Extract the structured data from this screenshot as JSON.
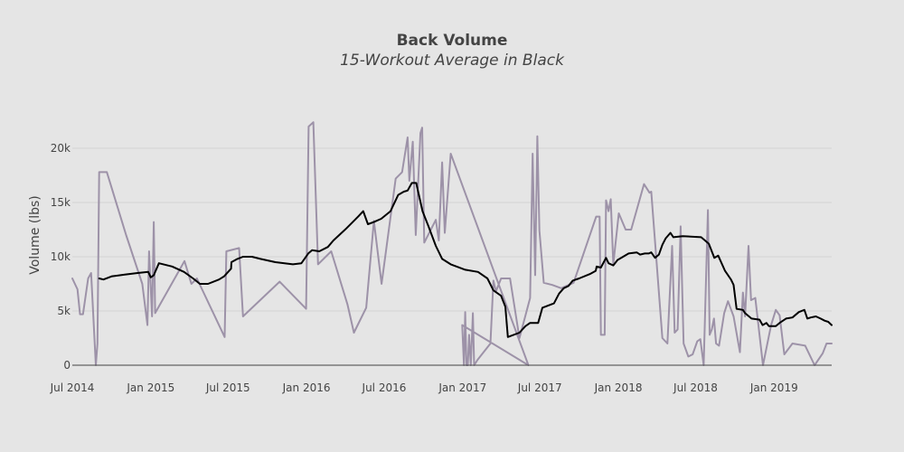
{
  "chart_data": {
    "type": "line",
    "title": "Back Volume",
    "subtitle": "15-Workout Average in Black",
    "xlabel": "",
    "ylabel": "Volume (lbs)",
    "x_ticks": [
      "Jul 2014",
      "Jan 2015",
      "Jul 2015",
      "Jan 2016",
      "Jul 2016",
      "Jan 2017",
      "Jul 2017",
      "Jan 2018",
      "Jul 2018",
      "Jan 2019"
    ],
    "y_ticks": [
      "0",
      "5k",
      "10k",
      "15k",
      "20k"
    ],
    "xlim": [
      "2014-07-01",
      "2019-05-16"
    ],
    "ylim": [
      0,
      24500
    ],
    "grid": true,
    "colors": {
      "raw": "#9d92a8",
      "average": "#000000",
      "background": "#e5e5e5",
      "grid": "#d2d2d2"
    },
    "series": [
      {
        "key": "raw",
        "points": [
          [
            "2014-07-01",
            8000
          ],
          [
            "2014-07-13",
            7000
          ],
          [
            "2014-07-19",
            4700
          ],
          [
            "2014-07-26",
            4700
          ],
          [
            "2014-08-07",
            8000
          ],
          [
            "2014-08-14",
            8500
          ],
          [
            "2014-08-25",
            0
          ],
          [
            "2014-08-29",
            2000
          ],
          [
            "2014-09-02",
            17800
          ],
          [
            "2014-09-20",
            17800
          ],
          [
            "2014-11-04",
            12000
          ],
          [
            "2014-12-12",
            7500
          ],
          [
            "2014-12-24",
            3700
          ],
          [
            "2014-12-28",
            10500
          ],
          [
            "2015-01-04",
            4500
          ],
          [
            "2015-01-08",
            13200
          ],
          [
            "2015-01-11",
            4800
          ],
          [
            "2015-03-21",
            9600
          ],
          [
            "2015-04-06",
            7500
          ],
          [
            "2015-04-19",
            8000
          ],
          [
            "2015-06-23",
            2600
          ],
          [
            "2015-06-27",
            10500
          ],
          [
            "2015-07-27",
            10800
          ],
          [
            "2015-08-05",
            4500
          ],
          [
            "2015-10-30",
            7700
          ],
          [
            "2015-12-31",
            5200
          ],
          [
            "2016-01-06",
            22000
          ],
          [
            "2016-01-17",
            22400
          ],
          [
            "2016-01-28",
            9300
          ],
          [
            "2016-02-28",
            10500
          ],
          [
            "2016-04-06",
            5600
          ],
          [
            "2016-04-21",
            3000
          ],
          [
            "2016-05-20",
            5300
          ],
          [
            "2016-06-07",
            13300
          ],
          [
            "2016-06-25",
            7500
          ],
          [
            "2016-07-28",
            17200
          ],
          [
            "2016-08-12",
            17800
          ],
          [
            "2016-08-25",
            21000
          ],
          [
            "2016-08-29",
            17000
          ],
          [
            "2016-09-06",
            20600
          ],
          [
            "2016-09-13",
            12000
          ],
          [
            "2016-09-24",
            21400
          ],
          [
            "2016-09-28",
            21900
          ],
          [
            "2016-10-03",
            11300
          ],
          [
            "2016-10-30",
            13400
          ],
          [
            "2016-11-06",
            11500
          ],
          [
            "2016-11-14",
            18700
          ],
          [
            "2016-11-20",
            12200
          ],
          [
            "2016-12-04",
            19500
          ],
          [
            "2017-06-04",
            0
          ],
          [
            "2016-12-31",
            3700
          ],
          [
            "2017-01-04",
            0
          ],
          [
            "2017-01-07",
            4900
          ],
          [
            "2017-01-10",
            0
          ],
          [
            "2017-01-13",
            0
          ],
          [
            "2017-01-16",
            2800
          ],
          [
            "2017-01-20",
            0
          ],
          [
            "2017-01-25",
            4800
          ],
          [
            "2017-01-28",
            0
          ],
          [
            "2017-02-05",
            500
          ],
          [
            "2017-03-07",
            2000
          ],
          [
            "2017-03-14",
            7800
          ],
          [
            "2017-03-20",
            6800
          ],
          [
            "2017-04-01",
            8000
          ],
          [
            "2017-04-22",
            8000
          ],
          [
            "2017-05-14",
            2500
          ],
          [
            "2017-06-08",
            6200
          ],
          [
            "2017-06-14",
            19500
          ],
          [
            "2017-06-20",
            8300
          ],
          [
            "2017-06-25",
            21100
          ],
          [
            "2017-06-30",
            12400
          ],
          [
            "2017-07-10",
            7600
          ],
          [
            "2017-07-30",
            7400
          ],
          [
            "2017-08-20",
            7100
          ],
          [
            "2017-09-18",
            7600
          ],
          [
            "2017-11-10",
            13700
          ],
          [
            "2017-11-18",
            13700
          ],
          [
            "2017-11-21",
            2800
          ],
          [
            "2017-11-30",
            2800
          ],
          [
            "2017-12-03",
            15200
          ],
          [
            "2017-12-09",
            14200
          ],
          [
            "2017-12-14",
            15300
          ],
          [
            "2017-12-20",
            9300
          ],
          [
            "2018-01-02",
            14000
          ],
          [
            "2018-01-18",
            12500
          ],
          [
            "2018-01-31",
            12500
          ],
          [
            "2018-03-02",
            16700
          ],
          [
            "2018-03-15",
            15900
          ],
          [
            "2018-03-19",
            16000
          ],
          [
            "2018-04-14",
            2500
          ],
          [
            "2018-04-26",
            2000
          ],
          [
            "2018-05-07",
            11000
          ],
          [
            "2018-05-13",
            3000
          ],
          [
            "2018-05-20",
            3300
          ],
          [
            "2018-05-27",
            12800
          ],
          [
            "2018-06-03",
            2000
          ],
          [
            "2018-06-14",
            800
          ],
          [
            "2018-06-24",
            1000
          ],
          [
            "2018-07-05",
            2200
          ],
          [
            "2018-07-12",
            2400
          ],
          [
            "2018-07-20",
            0
          ],
          [
            "2018-07-30",
            14300
          ],
          [
            "2018-08-03",
            2800
          ],
          [
            "2018-08-08",
            3300
          ],
          [
            "2018-08-13",
            4300
          ],
          [
            "2018-08-18",
            2000
          ],
          [
            "2018-08-25",
            1800
          ],
          [
            "2018-09-06",
            4800
          ],
          [
            "2018-09-15",
            5900
          ],
          [
            "2018-09-28",
            4500
          ],
          [
            "2018-10-13",
            1200
          ],
          [
            "2018-10-20",
            6700
          ],
          [
            "2018-10-25",
            4500
          ],
          [
            "2018-11-02",
            11000
          ],
          [
            "2018-11-08",
            6000
          ],
          [
            "2018-11-18",
            6200
          ],
          [
            "2018-12-06",
            0
          ],
          [
            "2018-12-25",
            3700
          ],
          [
            "2019-01-05",
            5100
          ],
          [
            "2019-01-14",
            4600
          ],
          [
            "2019-01-25",
            1000
          ],
          [
            "2019-02-13",
            2000
          ],
          [
            "2019-03-15",
            1800
          ],
          [
            "2019-04-06",
            0
          ],
          [
            "2019-04-25",
            1100
          ],
          [
            "2019-05-04",
            2000
          ],
          [
            "2019-05-16",
            2000
          ]
        ]
      },
      {
        "key": "average",
        "points": [
          [
            "2014-09-02",
            8000
          ],
          [
            "2014-09-12",
            7900
          ],
          [
            "2014-10-02",
            8200
          ],
          [
            "2014-11-01",
            8350
          ],
          [
            "2014-12-01",
            8500
          ],
          [
            "2014-12-26",
            8600
          ],
          [
            "2015-01-01",
            8100
          ],
          [
            "2015-01-08",
            8300
          ],
          [
            "2015-01-20",
            9400
          ],
          [
            "2015-02-20",
            9100
          ],
          [
            "2015-03-20",
            8600
          ],
          [
            "2015-04-10",
            8000
          ],
          [
            "2015-04-26",
            7500
          ],
          [
            "2015-05-15",
            7500
          ],
          [
            "2015-06-10",
            7900
          ],
          [
            "2015-06-22",
            8200
          ],
          [
            "2015-07-08",
            8900
          ],
          [
            "2015-07-09",
            9500
          ],
          [
            "2015-07-23",
            9800
          ],
          [
            "2015-08-05",
            10000
          ],
          [
            "2015-08-26",
            10000
          ],
          [
            "2015-09-15",
            9800
          ],
          [
            "2015-10-20",
            9500
          ],
          [
            "2015-11-30",
            9300
          ],
          [
            "2015-12-20",
            9400
          ],
          [
            "2016-01-05",
            10300
          ],
          [
            "2016-01-14",
            10600
          ],
          [
            "2016-01-31",
            10500
          ],
          [
            "2016-02-20",
            10900
          ],
          [
            "2016-03-04",
            11500
          ],
          [
            "2016-04-03",
            12600
          ],
          [
            "2016-05-01",
            13700
          ],
          [
            "2016-05-13",
            14200
          ],
          [
            "2016-05-24",
            13000
          ],
          [
            "2016-06-07",
            13200
          ],
          [
            "2016-06-24",
            13500
          ],
          [
            "2016-07-16",
            14200
          ],
          [
            "2016-08-03",
            15700
          ],
          [
            "2016-08-16",
            16000
          ],
          [
            "2016-08-25",
            16100
          ],
          [
            "2016-09-04",
            16800
          ],
          [
            "2016-09-14",
            16800
          ],
          [
            "2016-09-29",
            14200
          ],
          [
            "2016-10-13",
            12800
          ],
          [
            "2016-10-30",
            11000
          ],
          [
            "2016-11-14",
            9800
          ],
          [
            "2016-12-04",
            9300
          ],
          [
            "2017-01-07",
            8800
          ],
          [
            "2017-02-06",
            8600
          ],
          [
            "2017-02-28",
            8000
          ],
          [
            "2017-03-14",
            6900
          ],
          [
            "2017-04-01",
            6400
          ],
          [
            "2017-04-11",
            5400
          ],
          [
            "2017-04-17",
            2600
          ],
          [
            "2017-05-14",
            3000
          ],
          [
            "2017-05-28",
            3600
          ],
          [
            "2017-06-08",
            3900
          ],
          [
            "2017-06-27",
            3900
          ],
          [
            "2017-07-07",
            5300
          ],
          [
            "2017-08-03",
            5700
          ],
          [
            "2017-08-15",
            6600
          ],
          [
            "2017-08-26",
            7100
          ],
          [
            "2017-09-06",
            7300
          ],
          [
            "2017-09-16",
            7800
          ],
          [
            "2017-10-01",
            8000
          ],
          [
            "2017-10-26",
            8400
          ],
          [
            "2017-11-09",
            8700
          ],
          [
            "2017-11-11",
            9100
          ],
          [
            "2017-11-21",
            9000
          ],
          [
            "2017-12-03",
            9900
          ],
          [
            "2017-12-09",
            9400
          ],
          [
            "2017-12-20",
            9200
          ],
          [
            "2017-12-30",
            9700
          ],
          [
            "2018-01-25",
            10300
          ],
          [
            "2018-02-13",
            10400
          ],
          [
            "2018-02-21",
            10200
          ],
          [
            "2018-03-04",
            10300
          ],
          [
            "2018-03-13",
            10300
          ],
          [
            "2018-03-19",
            10400
          ],
          [
            "2018-03-28",
            9900
          ],
          [
            "2018-04-06",
            10200
          ],
          [
            "2018-04-14",
            11100
          ],
          [
            "2018-04-22",
            11700
          ],
          [
            "2018-05-03",
            12200
          ],
          [
            "2018-05-10",
            11800
          ],
          [
            "2018-06-01",
            11900
          ],
          [
            "2018-07-14",
            11800
          ],
          [
            "2018-08-01",
            11200
          ],
          [
            "2018-08-14",
            9900
          ],
          [
            "2018-08-23",
            10100
          ],
          [
            "2018-09-08",
            8700
          ],
          [
            "2018-09-22",
            7900
          ],
          [
            "2018-09-28",
            7400
          ],
          [
            "2018-10-05",
            5200
          ],
          [
            "2018-10-20",
            5100
          ],
          [
            "2018-10-25",
            4800
          ],
          [
            "2018-11-09",
            4300
          ],
          [
            "2018-11-28",
            4200
          ],
          [
            "2018-12-05",
            3700
          ],
          [
            "2018-12-14",
            3900
          ],
          [
            "2018-12-20",
            3600
          ],
          [
            "2019-01-05",
            3600
          ],
          [
            "2019-01-14",
            3900
          ],
          [
            "2019-01-29",
            4300
          ],
          [
            "2019-02-13",
            4400
          ],
          [
            "2019-02-28",
            4900
          ],
          [
            "2019-03-13",
            5100
          ],
          [
            "2019-03-20",
            4300
          ],
          [
            "2019-03-28",
            4400
          ],
          [
            "2019-04-09",
            4500
          ],
          [
            "2019-04-20",
            4300
          ],
          [
            "2019-04-30",
            4100
          ],
          [
            "2019-05-08",
            4000
          ],
          [
            "2019-05-16",
            3700
          ]
        ]
      }
    ]
  }
}
